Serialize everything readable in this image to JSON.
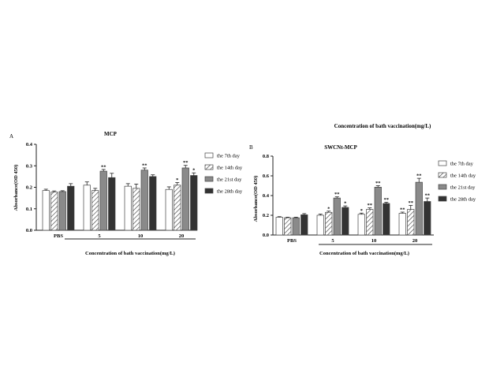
{
  "colors": {
    "white": "#ffffff",
    "light": "#bdbdbd",
    "gray": "#8a8a8a",
    "dark": "#333333",
    "axis": "#222222"
  },
  "top_note": "Concentration of bath vaccination(mg/L)",
  "chart_data": [
    {
      "type": "bar",
      "panel_label": "A",
      "title": "MCP",
      "ylabel": "Absorbance(OD 450)",
      "xlabel": "Concentration of bath vaccination(mg/L)",
      "categories": [
        "PBS",
        "5",
        "10",
        "20"
      ],
      "ylim": [
        0,
        0.4
      ],
      "yticks": [
        "0.0",
        "0.1",
        "0.2",
        "0.3",
        "0.4"
      ],
      "ytick_values": [
        0,
        0.1,
        0.2,
        0.3,
        0.4
      ],
      "legend_position": "right",
      "series": [
        {
          "name": "the 7th day",
          "pattern": "white",
          "values": [
            0.185,
            0.21,
            0.205,
            0.19
          ],
          "errors": [
            0.006,
            0.015,
            0.012,
            0.012
          ],
          "marks": [
            "",
            "",
            "",
            ""
          ]
        },
        {
          "name": "the 14th day",
          "pattern": "hatch",
          "values": [
            0.178,
            0.185,
            0.195,
            0.21
          ],
          "errors": [
            0.005,
            0.01,
            0.02,
            0.012
          ],
          "marks": [
            "",
            "",
            "",
            "*"
          ]
        },
        {
          "name": "the 21st day",
          "pattern": "gray",
          "values": [
            0.18,
            0.275,
            0.28,
            0.29
          ],
          "errors": [
            0.004,
            0.008,
            0.01,
            0.012
          ],
          "marks": [
            "",
            "**",
            "**",
            "**"
          ]
        },
        {
          "name": "the 28th day",
          "pattern": "dark",
          "values": [
            0.205,
            0.245,
            0.25,
            0.255
          ],
          "errors": [
            0.012,
            0.02,
            0.008,
            0.012
          ],
          "marks": [
            "",
            "",
            "",
            "*"
          ]
        }
      ]
    },
    {
      "type": "bar",
      "panel_label": "B",
      "title": "SWCNt-MCP",
      "ylabel": "Absorbance(OD 450)",
      "xlabel": "Concentration of bath vaccination(mg/L)",
      "categories": [
        "PBS",
        "5",
        "10",
        "20"
      ],
      "ylim": [
        0,
        0.8
      ],
      "yticks": [
        "0.0",
        "0.2",
        "0.4",
        "0.6",
        "0.8"
      ],
      "ytick_values": [
        0,
        0.2,
        0.4,
        0.6,
        0.8
      ],
      "legend_position": "right",
      "series": [
        {
          "name": "the 7th day",
          "pattern": "white",
          "values": [
            0.18,
            0.2,
            0.21,
            0.22
          ],
          "errors": [
            0.006,
            0.012,
            0.012,
            0.012
          ],
          "marks": [
            "",
            "",
            "*",
            "**"
          ]
        },
        {
          "name": "the 14th day",
          "pattern": "hatch",
          "values": [
            0.175,
            0.23,
            0.26,
            0.26
          ],
          "errors": [
            0.006,
            0.012,
            0.015,
            0.04
          ],
          "marks": [
            "",
            "*",
            "**",
            "**"
          ]
        },
        {
          "name": "the 21st day",
          "pattern": "gray",
          "values": [
            0.175,
            0.375,
            0.485,
            0.535
          ],
          "errors": [
            0.006,
            0.012,
            0.015,
            0.04
          ],
          "marks": [
            "",
            "**",
            "**",
            "**"
          ]
        },
        {
          "name": "the 28th day",
          "pattern": "dark",
          "values": [
            0.205,
            0.28,
            0.32,
            0.34
          ],
          "errors": [
            0.012,
            0.015,
            0.012,
            0.035
          ],
          "marks": [
            "",
            "*",
            "**",
            "**"
          ]
        }
      ]
    }
  ]
}
